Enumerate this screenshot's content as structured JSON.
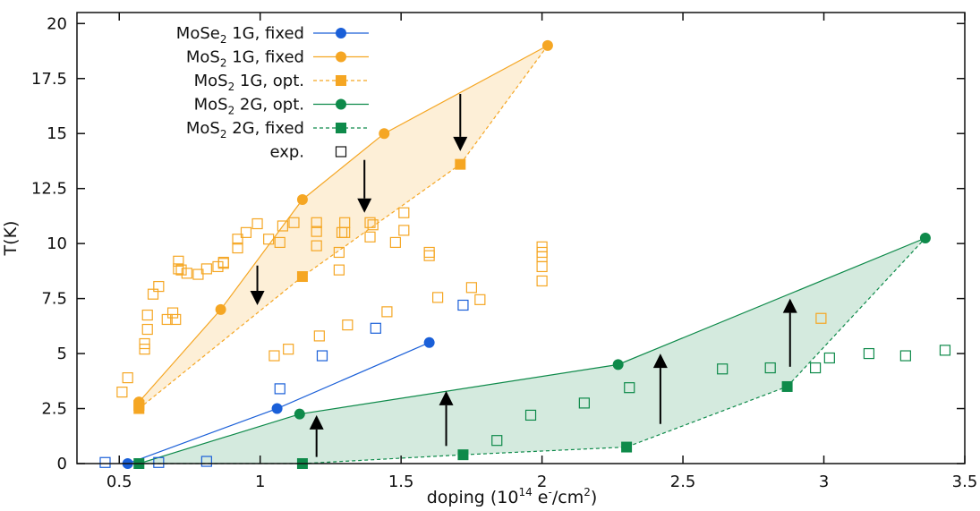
{
  "chart_data": {
    "type": "scatter",
    "title": "",
    "xlabel": "doping (10",
    "xlabel_exp": "14",
    "xlabel_unit": " e",
    "xlabel_unit_exp": "-",
    "xlabel_tail": "/cm",
    "xlabel_tail_exp": "2",
    "xlabel_close": ")",
    "ylabel": "T(K)",
    "xlim": [
      0.35,
      3.5
    ],
    "ylim": [
      0,
      20.5
    ],
    "xticks": [
      0.5,
      1,
      1.5,
      2,
      2.5,
      3,
      3.5
    ],
    "xtick_labels": [
      "0.5",
      "1",
      "1.5",
      "2",
      "2.5",
      "3",
      "3.5"
    ],
    "yticks": [
      0,
      2.5,
      5,
      7.5,
      10,
      12.5,
      15,
      17.5,
      20
    ],
    "ytick_labels": [
      "0",
      "2.5",
      "5",
      "7.5",
      "10",
      "12.5",
      "15",
      "17.5",
      "20"
    ],
    "colors": {
      "blue": "#1a5fd8",
      "orange": "#f5a623",
      "green": "#0e8a4a"
    },
    "legend": [
      {
        "base": "MoSe",
        "sub": "2",
        "rest": " 1G, fixed",
        "color": "#1a5fd8",
        "marker": "circle",
        "dash": false
      },
      {
        "base": "MoS",
        "sub": "2",
        "rest": " 1G, fixed",
        "color": "#f5a623",
        "marker": "circle",
        "dash": false
      },
      {
        "base": "MoS",
        "sub": "2",
        "rest": " 1G, opt.",
        "color": "#f5a623",
        "marker": "square",
        "dash": true
      },
      {
        "base": "MoS",
        "sub": "2",
        "rest": " 2G, opt.",
        "color": "#0e8a4a",
        "marker": "circle",
        "dash": false
      },
      {
        "base": "MoS",
        "sub": "2",
        "rest": " 2G, fixed",
        "color": "#0e8a4a",
        "marker": "square",
        "dash": true
      },
      {
        "base": "exp.",
        "sub": "",
        "rest": "",
        "color": "#111111",
        "marker": "open-square",
        "dash": null
      }
    ],
    "series": [
      {
        "name": "MoSe2 1G, fixed",
        "color": "#1a5fd8",
        "marker": "circle",
        "dash": false,
        "x": [
          0.53,
          1.06,
          1.6
        ],
        "y": [
          0,
          2.5,
          5.5
        ]
      },
      {
        "name": "MoS2 1G, fixed",
        "color": "#f5a623",
        "marker": "circle",
        "dash": false,
        "x": [
          0.57,
          0.86,
          1.15,
          1.44,
          2.02
        ],
        "y": [
          2.8,
          7.0,
          12.0,
          15.0,
          19.0
        ]
      },
      {
        "name": "MoS2 1G, opt.",
        "color": "#f5a623",
        "marker": "square",
        "dash": true,
        "x": [
          0.57,
          1.15,
          1.71
        ],
        "y": [
          2.5,
          8.5,
          13.6
        ]
      },
      {
        "name": "MoS2 2G, opt.",
        "color": "#0e8a4a",
        "marker": "circle",
        "dash": false,
        "x": [
          0.57,
          1.14,
          2.27,
          3.36
        ],
        "y": [
          0,
          2.25,
          4.5,
          10.25
        ]
      },
      {
        "name": "MoS2 2G, fixed",
        "color": "#0e8a4a",
        "marker": "square",
        "dash": true,
        "x": [
          0.57,
          1.15,
          1.72,
          2.3,
          2.87
        ],
        "y": [
          0,
          0,
          0.4,
          0.75,
          3.5
        ]
      }
    ],
    "exp_orange": {
      "x": [
        0.51,
        0.53,
        0.57,
        0.59,
        0.59,
        0.6,
        0.6,
        0.62,
        0.64,
        0.67,
        0.69,
        0.7,
        0.71,
        0.71,
        0.72,
        0.74,
        0.78,
        0.81,
        0.85,
        0.87,
        0.87,
        0.92,
        0.92,
        0.95,
        0.99,
        1.03,
        1.05,
        1.07,
        1.08,
        1.1,
        1.12,
        1.2,
        1.2,
        1.2,
        1.21,
        1.28,
        1.28,
        1.29,
        1.3,
        1.3,
        1.31,
        1.39,
        1.39,
        1.4,
        1.45,
        1.48,
        1.51,
        1.51,
        1.6,
        1.6,
        1.63,
        1.75,
        1.78,
        2.0,
        2.0,
        2.0,
        2.0,
        2.0,
        2.99
      ],
      "y": [
        3.25,
        3.9,
        2.65,
        5.2,
        5.45,
        6.75,
        6.1,
        7.7,
        8.05,
        6.55,
        6.85,
        6.55,
        9.2,
        8.85,
        8.8,
        8.65,
        8.6,
        8.85,
        8.95,
        9.15,
        9.1,
        10.2,
        9.8,
        10.5,
        10.9,
        10.2,
        4.9,
        10.05,
        10.8,
        5.2,
        10.95,
        9.9,
        10.55,
        10.95,
        5.8,
        8.8,
        9.6,
        10.5,
        10.95,
        10.5,
        6.3,
        10.95,
        10.3,
        10.85,
        6.9,
        10.05,
        10.6,
        11.4,
        9.6,
        9.45,
        7.55,
        8.0,
        7.45,
        9.6,
        9.85,
        9.4,
        8.95,
        8.3,
        6.6
      ]
    },
    "exp_blue": {
      "x": [
        0.45,
        0.64,
        0.81,
        1.07,
        1.22,
        1.41,
        1.72
      ],
      "y": [
        0.05,
        0.05,
        0.1,
        3.4,
        4.9,
        6.15,
        7.2
      ]
    },
    "exp_green": {
      "x": [
        1.84,
        1.96,
        2.15,
        2.31,
        2.64,
        2.81,
        2.97,
        3.02,
        3.16,
        3.29,
        3.43
      ],
      "y": [
        1.05,
        2.2,
        2.75,
        3.45,
        4.3,
        4.35,
        4.35,
        4.8,
        5.0,
        4.9,
        5.15
      ]
    },
    "arrows": [
      {
        "x": 0.99,
        "y_from": 9.0,
        "y_to": 7.2
      },
      {
        "x": 1.37,
        "y_from": 13.8,
        "y_to": 11.4
      },
      {
        "x": 1.71,
        "y_from": 16.8,
        "y_to": 14.2
      },
      {
        "x": 1.2,
        "y_from": 0.3,
        "y_to": 2.2
      },
      {
        "x": 1.66,
        "y_from": 0.8,
        "y_to": 3.3
      },
      {
        "x": 2.42,
        "y_from": 1.8,
        "y_to": 5.0
      },
      {
        "x": 2.88,
        "y_from": 4.4,
        "y_to": 7.5
      }
    ]
  }
}
